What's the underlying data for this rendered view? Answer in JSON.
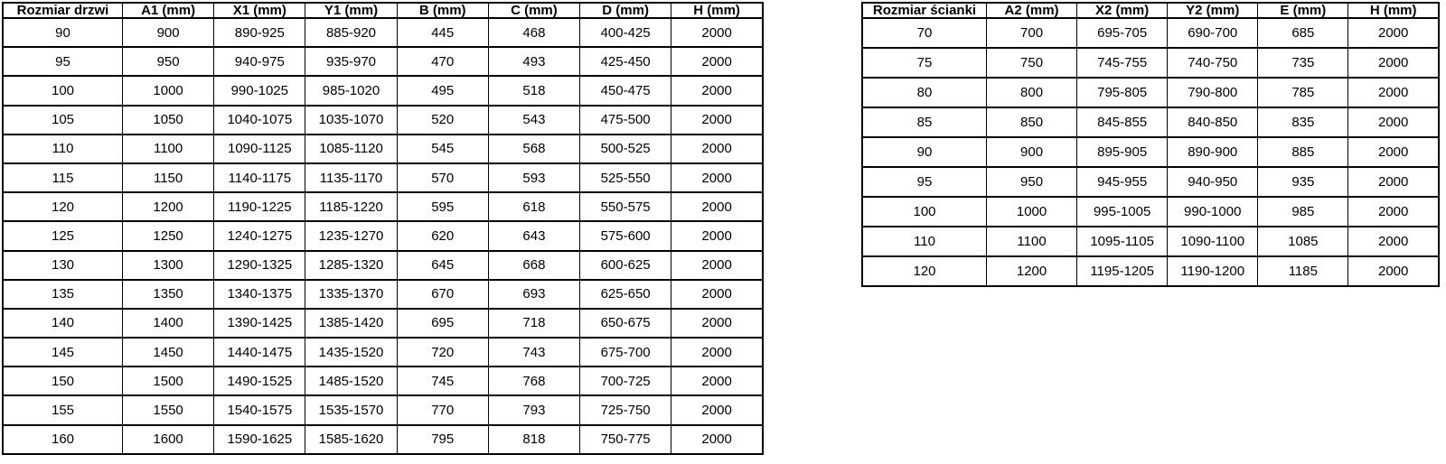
{
  "colors": {
    "background": "#ffffff",
    "border": "#000000",
    "text": "#000000"
  },
  "chart_data": [
    {
      "type": "table",
      "headers": [
        "Rozmiar drzwi",
        "A1 (mm)",
        "X1 (mm)",
        "Y1 (mm)",
        "B (mm)",
        "C (mm)",
        "D (mm)",
        "H (mm)"
      ],
      "rows": [
        [
          "90",
          "900",
          "890-925",
          "885-920",
          "445",
          "468",
          "400-425",
          "2000"
        ],
        [
          "95",
          "950",
          "940-975",
          "935-970",
          "470",
          "493",
          "425-450",
          "2000"
        ],
        [
          "100",
          "1000",
          "990-1025",
          "985-1020",
          "495",
          "518",
          "450-475",
          "2000"
        ],
        [
          "105",
          "1050",
          "1040-1075",
          "1035-1070",
          "520",
          "543",
          "475-500",
          "2000"
        ],
        [
          "110",
          "1100",
          "1090-1125",
          "1085-1120",
          "545",
          "568",
          "500-525",
          "2000"
        ],
        [
          "115",
          "1150",
          "1140-1175",
          "1135-1170",
          "570",
          "593",
          "525-550",
          "2000"
        ],
        [
          "120",
          "1200",
          "1190-1225",
          "1185-1220",
          "595",
          "618",
          "550-575",
          "2000"
        ],
        [
          "125",
          "1250",
          "1240-1275",
          "1235-1270",
          "620",
          "643",
          "575-600",
          "2000"
        ],
        [
          "130",
          "1300",
          "1290-1325",
          "1285-1320",
          "645",
          "668",
          "600-625",
          "2000"
        ],
        [
          "135",
          "1350",
          "1340-1375",
          "1335-1370",
          "670",
          "693",
          "625-650",
          "2000"
        ],
        [
          "140",
          "1400",
          "1390-1425",
          "1385-1420",
          "695",
          "718",
          "650-675",
          "2000"
        ],
        [
          "145",
          "1450",
          "1440-1475",
          "1435-1520",
          "720",
          "743",
          "675-700",
          "2000"
        ],
        [
          "150",
          "1500",
          "1490-1525",
          "1485-1520",
          "745",
          "768",
          "700-725",
          "2000"
        ],
        [
          "155",
          "1550",
          "1540-1575",
          "1535-1570",
          "770",
          "793",
          "725-750",
          "2000"
        ],
        [
          "160",
          "1600",
          "1590-1625",
          "1585-1620",
          "795",
          "818",
          "750-775",
          "2000"
        ]
      ]
    },
    {
      "type": "table",
      "headers": [
        "Rozmiar ścianki",
        "A2 (mm)",
        "X2 (mm)",
        "Y2 (mm)",
        "E (mm)",
        "H (mm)"
      ],
      "rows": [
        [
          "70",
          "700",
          "695-705",
          "690-700",
          "685",
          "2000"
        ],
        [
          "75",
          "750",
          "745-755",
          "740-750",
          "735",
          "2000"
        ],
        [
          "80",
          "800",
          "795-805",
          "790-800",
          "785",
          "2000"
        ],
        [
          "85",
          "850",
          "845-855",
          "840-850",
          "835",
          "2000"
        ],
        [
          "90",
          "900",
          "895-905",
          "890-900",
          "885",
          "2000"
        ],
        [
          "95",
          "950",
          "945-955",
          "940-950",
          "935",
          "2000"
        ],
        [
          "100",
          "1000",
          "995-1005",
          "990-1000",
          "985",
          "2000"
        ],
        [
          "110",
          "1100",
          "1095-1105",
          "1090-1100",
          "1085",
          "2000"
        ],
        [
          "120",
          "1200",
          "1195-1205",
          "1190-1200",
          "1185",
          "2000"
        ]
      ]
    }
  ]
}
